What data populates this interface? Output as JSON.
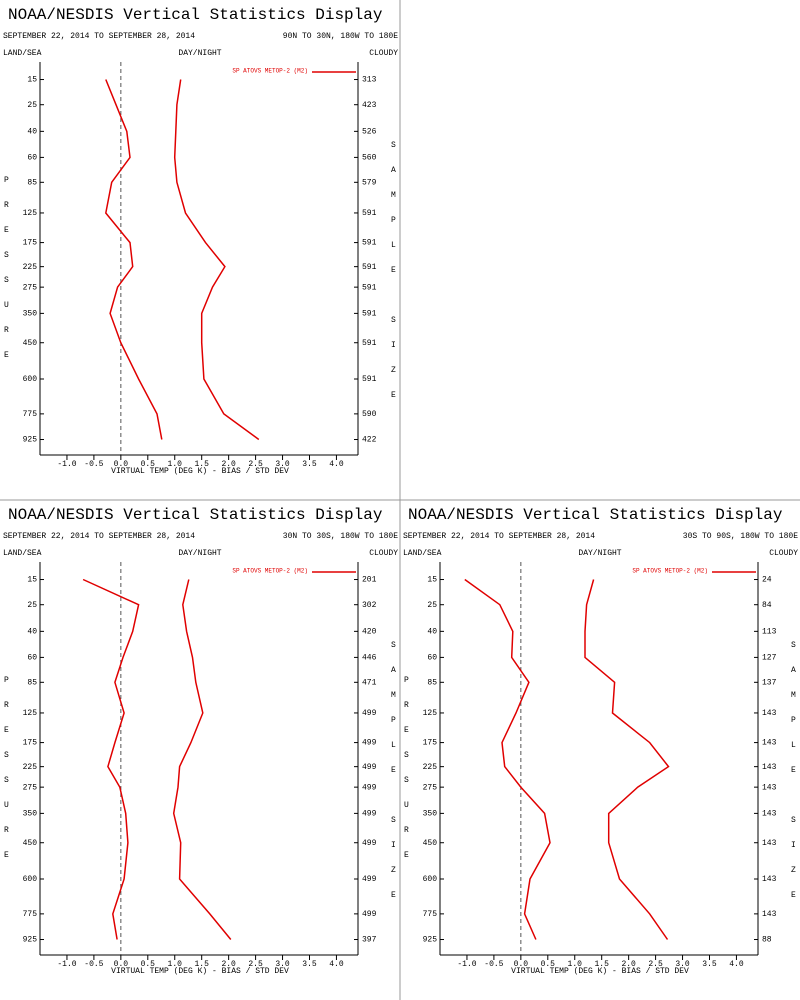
{
  "chart_data": [
    {
      "type": "line",
      "title": "NOAA/NESDIS Vertical Statistics Display",
      "period": "SEPTEMBER 22, 2014 TO SEPTEMBER 28, 2014",
      "region": "90N TO 30N, 180W TO 180E",
      "filters": [
        "LAND/SEA",
        "DAY/NIGHT",
        "CLOUDY"
      ],
      "y_label": "PRESSURE",
      "y2_label": "SAMPLE SIZE",
      "x_label": "VIRTUAL TEMP (DEG K) - BIAS / STD DEV",
      "y": [
        15,
        25,
        40,
        60,
        85,
        125,
        175,
        225,
        275,
        350,
        450,
        600,
        775,
        925
      ],
      "series": [
        {
          "name": "SP ATOVS METOP-2 (M2)",
          "color": "#e00000",
          "values": [
            -0.28,
            -0.09,
            0.11,
            0.17,
            -0.17,
            -0.28,
            0.17,
            0.22,
            -0.06,
            -0.2,
            0.0,
            0.33,
            0.67,
            0.76
          ],
          "std_dev": [
            1.11,
            1.04,
            1.02,
            1.0,
            1.04,
            1.2,
            1.57,
            1.93,
            1.7,
            1.5,
            1.5,
            1.54,
            1.91,
            2.56
          ]
        }
      ],
      "sample_size": [
        313,
        423,
        526,
        560,
        579,
        591,
        591,
        591,
        591,
        591,
        591,
        591,
        590,
        422
      ],
      "reference_x": 0,
      "xlim": [
        -1.5,
        4.4
      ],
      "ylim": [
        10,
        1025
      ],
      "yticks": [
        15,
        25,
        40,
        60,
        85,
        125,
        175,
        225,
        275,
        350,
        450,
        600,
        775,
        925
      ],
      "xticks": [
        {
          "value": -1.0,
          "label": "-1.0"
        },
        {
          "value": -0.5,
          "label": "-0.5"
        },
        {
          "value": 0.0,
          "label": "0.0"
        },
        {
          "value": 0.5,
          "label": "0.5"
        },
        {
          "value": 1.0,
          "label": "1.0"
        },
        {
          "value": 1.5,
          "label": "1.5"
        },
        {
          "value": 2.0,
          "label": "2.0"
        },
        {
          "value": 2.5,
          "label": "2.5"
        },
        {
          "value": 3.0,
          "label": "3.0"
        },
        {
          "value": 3.5,
          "label": "3.5"
        },
        {
          "value": 4.0,
          "label": "4.0"
        }
      ]
    },
    {
      "type": "line",
      "title": "NOAA/NESDIS Vertical Statistics Display",
      "period": "SEPTEMBER 22, 2014 TO SEPTEMBER 28, 2014",
      "region": "30N TO 30S, 180W TO 180E",
      "filters": [
        "LAND/SEA",
        "DAY/NIGHT",
        "CLOUDY"
      ],
      "y_label": "PRESSURE",
      "y2_label": "SAMPLE SIZE",
      "x_label": "VIRTUAL TEMP (DEG K) - BIAS / STD DEV",
      "y": [
        15,
        25,
        40,
        60,
        85,
        125,
        175,
        225,
        275,
        350,
        450,
        600,
        775,
        925
      ],
      "series": [
        {
          "name": "SP ATOVS METOP-2 (M2)",
          "color": "#e00000",
          "values": [
            -0.7,
            0.33,
            0.22,
            0.04,
            -0.11,
            0.06,
            -0.11,
            -0.24,
            -0.02,
            0.09,
            0.13,
            0.06,
            -0.15,
            -0.07
          ],
          "std_dev": [
            1.26,
            1.15,
            1.22,
            1.33,
            1.39,
            1.52,
            1.3,
            1.09,
            1.06,
            0.98,
            1.11,
            1.09,
            1.65,
            2.04
          ]
        }
      ],
      "sample_size": [
        201,
        302,
        420,
        446,
        471,
        499,
        499,
        499,
        499,
        499,
        499,
        499,
        499,
        397
      ],
      "reference_x": 0,
      "xlim": [
        -1.5,
        4.4
      ],
      "ylim": [
        10,
        1025
      ],
      "yticks": [
        15,
        25,
        40,
        60,
        85,
        125,
        175,
        225,
        275,
        350,
        450,
        600,
        775,
        925
      ],
      "xticks": [
        {
          "value": -1.0,
          "label": "-1.0"
        },
        {
          "value": -0.5,
          "label": "-0.5"
        },
        {
          "value": 0.0,
          "label": "0.0"
        },
        {
          "value": 0.5,
          "label": "0.5"
        },
        {
          "value": 1.0,
          "label": "1.0"
        },
        {
          "value": 1.5,
          "label": "1.5"
        },
        {
          "value": 2.0,
          "label": "2.0"
        },
        {
          "value": 2.5,
          "label": "2.5"
        },
        {
          "value": 3.0,
          "label": "3.0"
        },
        {
          "value": 3.5,
          "label": "3.5"
        },
        {
          "value": 4.0,
          "label": "4.0"
        }
      ]
    },
    {
      "type": "line",
      "title": "NOAA/NESDIS Vertical Statistics Display",
      "period": "SEPTEMBER 22, 2014 TO SEPTEMBER 28, 2014",
      "region": "30S TO 90S, 180W TO 180E",
      "filters": [
        "LAND/SEA",
        "DAY/NIGHT",
        "CLOUDY"
      ],
      "y_label": "PRESSURE",
      "y2_label": "SAMPLE SIZE",
      "x_label": "VIRTUAL TEMP (DEG K) - BIAS / STD DEV",
      "y": [
        15,
        25,
        40,
        60,
        85,
        125,
        175,
        225,
        275,
        350,
        450,
        600,
        775,
        925
      ],
      "series": [
        {
          "name": "SP ATOVS METOP-2 (M2)",
          "color": "#e00000",
          "values": [
            -1.04,
            -0.39,
            -0.15,
            -0.17,
            0.15,
            -0.09,
            -0.35,
            -0.3,
            0.0,
            0.44,
            0.54,
            0.17,
            0.07,
            0.28
          ],
          "std_dev": [
            1.35,
            1.22,
            1.19,
            1.19,
            1.74,
            1.7,
            2.39,
            2.74,
            2.17,
            1.63,
            1.63,
            1.83,
            2.39,
            2.72
          ]
        }
      ],
      "sample_size": [
        24,
        84,
        113,
        127,
        137,
        143,
        143,
        143,
        143,
        143,
        143,
        143,
        143,
        88
      ],
      "reference_x": 0,
      "xlim": [
        -1.5,
        4.4
      ],
      "ylim": [
        10,
        1025
      ],
      "yticks": [
        15,
        25,
        40,
        60,
        85,
        125,
        175,
        225,
        275,
        350,
        450,
        600,
        775,
        925
      ],
      "xticks": [
        {
          "value": -1.0,
          "label": "-1.0"
        },
        {
          "value": -0.5,
          "label": "-0.5"
        },
        {
          "value": 0.0,
          "label": "0.0"
        },
        {
          "value": 0.5,
          "label": "0.5"
        },
        {
          "value": 1.0,
          "label": "1.0"
        },
        {
          "value": 1.5,
          "label": "1.5"
        },
        {
          "value": 2.0,
          "label": "2.0"
        },
        {
          "value": 2.5,
          "label": "2.5"
        },
        {
          "value": 3.0,
          "label": "3.0"
        },
        {
          "value": 3.5,
          "label": "3.5"
        },
        {
          "value": 4.0,
          "label": "4.0"
        }
      ]
    }
  ]
}
